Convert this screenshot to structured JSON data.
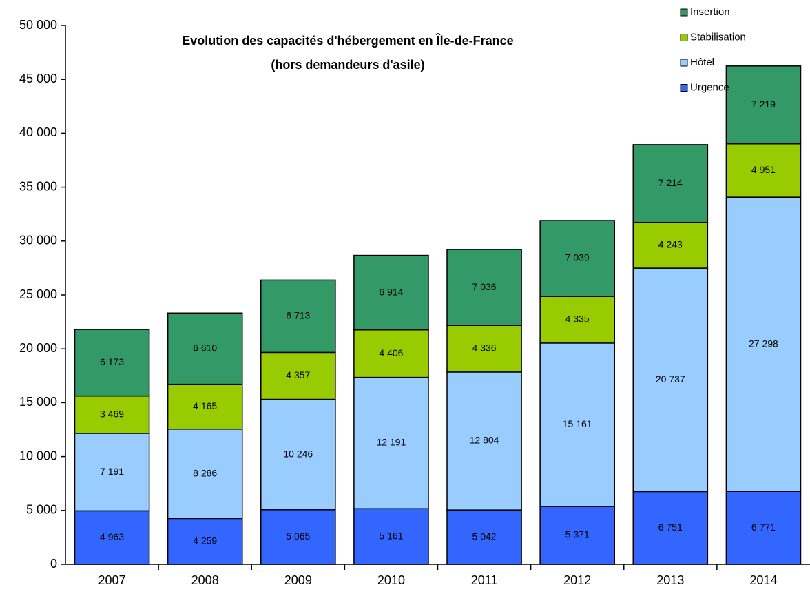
{
  "chart_data": {
    "type": "stacked_bar",
    "title": "Evolution des capacités d'hébergement en Île-de-France",
    "subtitle": "(hors demandeurs d'asile)",
    "categories": [
      "2007",
      "2008",
      "2009",
      "2010",
      "2011",
      "2012",
      "2013",
      "2014"
    ],
    "series": [
      {
        "name": "Urgence",
        "color": "#3366ff",
        "values": [
          4963,
          4259,
          5065,
          5161,
          5042,
          5371,
          6751,
          6771
        ],
        "value_labels": [
          "4 963",
          "4 259",
          "5 065",
          "5 161",
          "5 042",
          "5 371",
          "6 751",
          "6 771"
        ]
      },
      {
        "name": "Hôtel",
        "color": "#99ccff",
        "values": [
          7191,
          8286,
          10246,
          12191,
          12804,
          15161,
          20737,
          27298
        ],
        "value_labels": [
          "7 191",
          "8 286",
          "10 246",
          "12 191",
          "12 804",
          "15 161",
          "20 737",
          "27 298"
        ]
      },
      {
        "name": "Stabilisation",
        "color": "#99cc00",
        "values": [
          3469,
          4165,
          4357,
          4406,
          4336,
          4335,
          4243,
          4951
        ],
        "value_labels": [
          "3 469",
          "4 165",
          "4 357",
          "4 406",
          "4 336",
          "4 335",
          "4 243",
          "4 951"
        ]
      },
      {
        "name": "Insertion",
        "color": "#339966",
        "values": [
          6173,
          6610,
          6713,
          6914,
          7036,
          7039,
          7214,
          7219
        ],
        "value_labels": [
          "6 173",
          "6 610",
          "6 713",
          "6 914",
          "7 036",
          "7 039",
          "7 214",
          "7 219"
        ]
      }
    ],
    "ylim": [
      0,
      50000
    ],
    "yticks": [
      0,
      {
        "value": 5000,
        "label": "5 000"
      },
      {
        "value": 10000,
        "label": "10 000"
      },
      {
        "value": 15000,
        "label": "15 000"
      },
      {
        "value": 20000,
        "label": "20 000"
      },
      {
        "value": 25000,
        "label": "25 000"
      },
      {
        "value": 30000,
        "label": "30 000"
      },
      {
        "value": 35000,
        "label": "35 000"
      },
      {
        "value": 40000,
        "label": "40 000"
      },
      {
        "value": 45000,
        "label": "45 000"
      },
      {
        "value": 50000,
        "label": "50 000"
      }
    ],
    "grid": false,
    "legend": "top-right"
  }
}
